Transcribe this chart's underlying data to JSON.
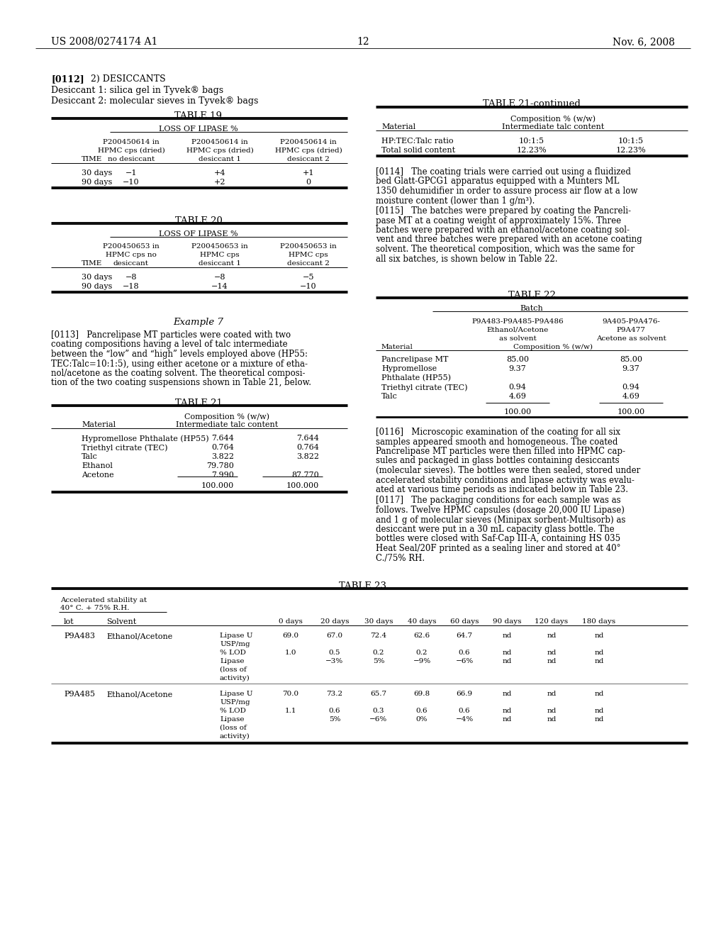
{
  "page_number": "12",
  "header_left": "US 2008/0274174 A1",
  "header_right": "Nov. 6, 2008",
  "bg_color": "#ffffff",
  "text_color": "#000000"
}
